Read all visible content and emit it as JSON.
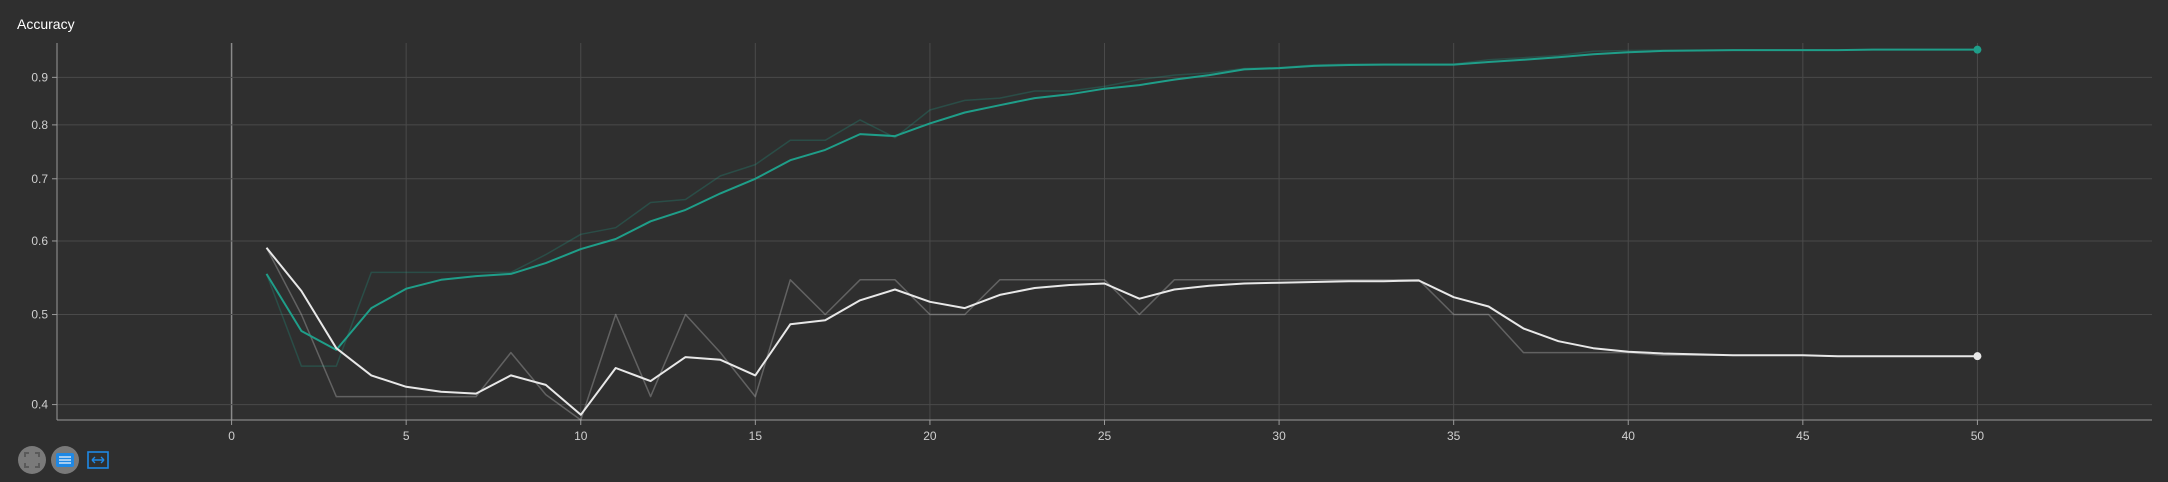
{
  "chart_data": {
    "type": "line",
    "title": "Accuracy",
    "xlabel": "",
    "ylabel": "",
    "x_ticks": [
      "0",
      "5",
      "10",
      "15",
      "20",
      "25",
      "30",
      "35",
      "40",
      "45",
      "50"
    ],
    "y_ticks": [
      "0.4",
      "0.5",
      "0.6",
      "0.7",
      "0.8",
      "0.9"
    ],
    "y_scale": "log",
    "xlim": [
      -5,
      55
    ],
    "ylim": [
      0.385,
      0.98
    ],
    "grid": true,
    "legend": "none",
    "colors": {
      "background": "#2f2f2f",
      "grid": "#4a4a4a",
      "axis": "#9a9a9a",
      "teal": "#1f9e89",
      "white": "#e8e8e8"
    },
    "series": [
      {
        "color": "#1f9e89",
        "smoothed": true,
        "x": [
          1,
          2,
          3,
          4,
          5,
          6,
          7,
          8,
          9,
          10,
          11,
          12,
          13,
          14,
          15,
          16,
          17,
          18,
          19,
          20,
          21,
          22,
          23,
          24,
          25,
          26,
          27,
          28,
          29,
          30,
          31,
          32,
          33,
          34,
          35,
          36,
          37,
          38,
          39,
          40,
          41,
          42,
          43,
          44,
          45,
          46,
          47,
          48,
          49,
          50
        ],
        "y": [
          0.553,
          0.48,
          0.458,
          0.508,
          0.533,
          0.545,
          0.55,
          0.553,
          0.568,
          0.588,
          0.603,
          0.63,
          0.648,
          0.675,
          0.7,
          0.733,
          0.752,
          0.782,
          0.778,
          0.803,
          0.825,
          0.84,
          0.855,
          0.863,
          0.875,
          0.883,
          0.895,
          0.905,
          0.918,
          0.921,
          0.926,
          0.928,
          0.929,
          0.929,
          0.929,
          0.935,
          0.94,
          0.946,
          0.953,
          0.958,
          0.961,
          0.962,
          0.963,
          0.963,
          0.963,
          0.963,
          0.964,
          0.964,
          0.964,
          0.964
        ]
      },
      {
        "color": "#1f9e89",
        "smoothed": false,
        "x": [
          1,
          2,
          3,
          4,
          5,
          6,
          7,
          8,
          9,
          10,
          11,
          12,
          13,
          14,
          15,
          16,
          17,
          18,
          19,
          20,
          21,
          22,
          23,
          24,
          25,
          26,
          27,
          28,
          29,
          30,
          31,
          32,
          33,
          34,
          35,
          36,
          37,
          38,
          39,
          40,
          41,
          42,
          43,
          44,
          45,
          46,
          47,
          48,
          49,
          50
        ],
        "y": [
          0.553,
          0.44,
          0.44,
          0.555,
          0.555,
          0.555,
          0.555,
          0.555,
          0.58,
          0.61,
          0.62,
          0.66,
          0.665,
          0.705,
          0.725,
          0.77,
          0.77,
          0.81,
          0.775,
          0.83,
          0.85,
          0.855,
          0.87,
          0.87,
          0.88,
          0.895,
          0.905,
          0.91,
          0.92,
          0.922,
          0.928,
          0.93,
          0.93,
          0.93,
          0.93,
          0.94,
          0.945,
          0.95,
          0.96,
          0.962,
          0.963,
          0.963,
          0.963,
          0.963,
          0.963,
          0.963,
          0.964,
          0.964,
          0.964,
          0.964
        ]
      },
      {
        "color": "#e8e8e8",
        "smoothed": true,
        "x": [
          1,
          2,
          3,
          4,
          5,
          6,
          7,
          8,
          9,
          10,
          11,
          12,
          13,
          14,
          15,
          16,
          17,
          18,
          19,
          20,
          21,
          22,
          23,
          24,
          25,
          26,
          27,
          28,
          29,
          30,
          31,
          32,
          33,
          34,
          35,
          36,
          37,
          38,
          39,
          40,
          41,
          42,
          43,
          44,
          45,
          46,
          47,
          48,
          49,
          50
        ],
        "y": [
          0.59,
          0.53,
          0.46,
          0.43,
          0.418,
          0.413,
          0.411,
          0.43,
          0.42,
          0.39,
          0.438,
          0.424,
          0.45,
          0.447,
          0.43,
          0.488,
          0.493,
          0.518,
          0.532,
          0.516,
          0.508,
          0.525,
          0.534,
          0.538,
          0.54,
          0.52,
          0.532,
          0.537,
          0.54,
          0.541,
          0.542,
          0.543,
          0.543,
          0.544,
          0.522,
          0.51,
          0.483,
          0.468,
          0.46,
          0.456,
          0.454,
          0.453,
          0.452,
          0.452,
          0.452,
          0.451,
          0.451,
          0.451,
          0.451,
          0.451
        ]
      },
      {
        "color": "#e8e8e8",
        "smoothed": false,
        "x": [
          1,
          2,
          3,
          4,
          5,
          6,
          7,
          8,
          9,
          10,
          11,
          12,
          13,
          14,
          15,
          16,
          17,
          18,
          19,
          20,
          21,
          22,
          23,
          24,
          25,
          26,
          27,
          28,
          29,
          30,
          31,
          32,
          33,
          34,
          35,
          36,
          37,
          38,
          39,
          40,
          41,
          42,
          43,
          44,
          45,
          46,
          47,
          48,
          49,
          50
        ],
        "y": [
          0.59,
          0.5,
          0.408,
          0.408,
          0.408,
          0.408,
          0.408,
          0.455,
          0.41,
          0.385,
          0.5,
          0.408,
          0.5,
          0.455,
          0.408,
          0.545,
          0.5,
          0.545,
          0.545,
          0.5,
          0.5,
          0.545,
          0.545,
          0.545,
          0.545,
          0.5,
          0.545,
          0.545,
          0.545,
          0.545,
          0.545,
          0.545,
          0.545,
          0.545,
          0.5,
          0.5,
          0.455,
          0.455,
          0.455,
          0.455,
          0.452,
          0.452,
          0.452,
          0.452,
          0.452,
          0.451,
          0.451,
          0.451,
          0.451,
          0.451
        ]
      }
    ]
  },
  "toolbar": {
    "fit_icon": "fit-domain-icon",
    "menu_icon": "lines-menu-icon",
    "expand_icon": "expand-icon"
  }
}
